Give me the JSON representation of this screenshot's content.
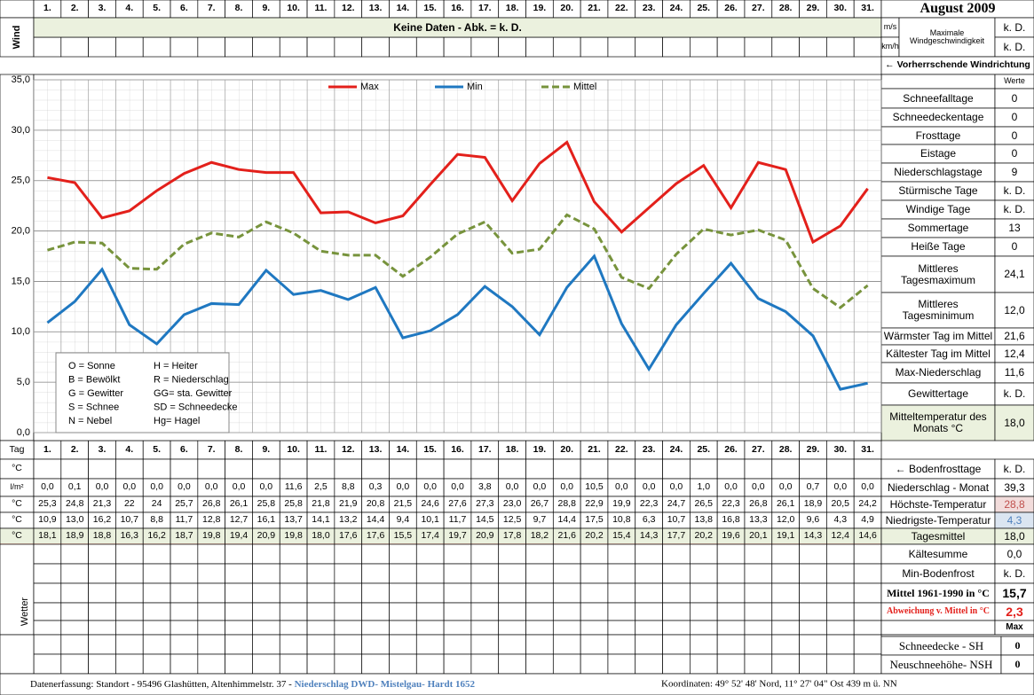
{
  "title": "August 2009",
  "wind": {
    "label": "Wind",
    "units": [
      "m/s",
      "km/h"
    ],
    "max_label": "Maximale Windgeschwindigkeit",
    "max_values": [
      "k. D.",
      "k. D."
    ],
    "no_data": "Keine Daten - Abk. = k. D.",
    "direction": "← Vorherrschende Windrichtung"
  },
  "chart_data": {
    "type": "line",
    "categories": [
      "1.",
      "2.",
      "3.",
      "4.",
      "5.",
      "6.",
      "7.",
      "8.",
      "9.",
      "10.",
      "11.",
      "12.",
      "13.",
      "14.",
      "15.",
      "16.",
      "17.",
      "18.",
      "19.",
      "20.",
      "21.",
      "22.",
      "23.",
      "24.",
      "25.",
      "26.",
      "27.",
      "28.",
      "29.",
      "30.",
      "31."
    ],
    "series": [
      {
        "name": "Max",
        "color": "#e3201b",
        "line_style": "solid",
        "values": [
          25.3,
          24.8,
          21.3,
          22,
          24,
          25.7,
          26.8,
          26.1,
          25.8,
          25.8,
          21.8,
          21.9,
          20.8,
          21.5,
          24.6,
          27.6,
          27.3,
          23.0,
          26.7,
          28.8,
          22.9,
          19.9,
          22.3,
          24.7,
          26.5,
          22.3,
          26.8,
          26.1,
          18.9,
          20.5,
          24.2
        ],
        "value_labels": [
          "25,3",
          "24,8",
          "21,3",
          "22",
          "24",
          "25,7",
          "26,8",
          "26,1",
          "25,8",
          "25,8",
          "21,8",
          "21,9",
          "20,8",
          "21,5",
          "24,6",
          "27,6",
          "27,3",
          "23,0",
          "26,7",
          "28,8",
          "22,9",
          "19,9",
          "22,3",
          "24,7",
          "26,5",
          "22,3",
          "26,8",
          "26,1",
          "18,9",
          "20,5",
          "24,2"
        ]
      },
      {
        "name": "Min",
        "color": "#1f78c1",
        "line_style": "solid",
        "values": [
          10.9,
          13.0,
          16.2,
          10.7,
          8.8,
          11.7,
          12.8,
          12.7,
          16.1,
          13.7,
          14.1,
          13.2,
          14.4,
          9.4,
          10.1,
          11.7,
          14.5,
          12.5,
          9.7,
          14.4,
          17.5,
          10.8,
          6.3,
          10.7,
          13.8,
          16.8,
          13.3,
          12.0,
          9.6,
          4.3,
          4.9
        ],
        "value_labels": [
          "10,9",
          "13,0",
          "16,2",
          "10,7",
          "8,8",
          "11,7",
          "12,8",
          "12,7",
          "16,1",
          "13,7",
          "14,1",
          "13,2",
          "14,4",
          "9,4",
          "10,1",
          "11,7",
          "14,5",
          "12,5",
          "9,7",
          "14,4",
          "17,5",
          "10,8",
          "6,3",
          "10,7",
          "13,8",
          "16,8",
          "13,3",
          "12,0",
          "9,6",
          "4,3",
          "4,9"
        ]
      },
      {
        "name": "Mittel",
        "color": "#77933c",
        "line_style": "dashed",
        "values": [
          18.1,
          18.9,
          18.8,
          16.3,
          16.2,
          18.7,
          19.8,
          19.4,
          20.9,
          19.8,
          18.0,
          17.6,
          17.6,
          15.5,
          17.4,
          19.7,
          20.9,
          17.8,
          18.2,
          21.6,
          20.2,
          15.4,
          14.3,
          17.7,
          20.2,
          19.6,
          20.1,
          19.1,
          14.3,
          12.4,
          14.6
        ],
        "value_labels": [
          "18,1",
          "18,9",
          "18,8",
          "16,3",
          "16,2",
          "18,7",
          "19,8",
          "19,4",
          "20,9",
          "19,8",
          "18,0",
          "17,6",
          "17,6",
          "15,5",
          "17,4",
          "19,7",
          "20,9",
          "17,8",
          "18,2",
          "21,6",
          "20,2",
          "15,4",
          "14,3",
          "17,7",
          "20,2",
          "19,6",
          "20,1",
          "19,1",
          "14,3",
          "12,4",
          "14,6"
        ]
      }
    ],
    "ylim": [
      0,
      35
    ],
    "yticks": [
      {
        "value": 0,
        "label": "0,0"
      },
      {
        "value": 5,
        "label": "5,0"
      },
      {
        "value": 10,
        "label": "10,0"
      },
      {
        "value": 15,
        "label": "15,0"
      },
      {
        "value": 20,
        "label": "20,0"
      },
      {
        "value": 25,
        "label": "25,0"
      },
      {
        "value": 30,
        "label": "30,0"
      },
      {
        "value": 35,
        "label": "35,0"
      }
    ],
    "grid": true,
    "legend": "top",
    "key": [
      "O = Sonne",
      "H = Heiter",
      "B = Bewölkt",
      "R = Niederschlag",
      "G = Gewitter",
      "GG= sta. Gewitter",
      "S = Schnee",
      "SD = Schneedecke",
      "N = Nebel",
      "Hg= Hagel"
    ]
  },
  "values_header": "Werte",
  "stats": [
    {
      "label": "Schneefalltage",
      "value": "0"
    },
    {
      "label": "Schneedeckentage",
      "value": "0"
    },
    {
      "label": "Frosttage",
      "value": "0"
    },
    {
      "label": "Eistage",
      "value": "0"
    },
    {
      "label": "Niederschlagstage",
      "value": "9"
    },
    {
      "label": "Stürmische Tage",
      "value": "k. D."
    },
    {
      "label": "Windige Tage",
      "value": "k. D."
    },
    {
      "label": "Sommertage",
      "value": "13"
    },
    {
      "label": "Heiße Tage",
      "value": "0"
    },
    {
      "label": "Mittleres Tagesmaximum",
      "value": "24,1"
    },
    {
      "label": "Mittleres Tagesminimum",
      "value": "12,0"
    },
    {
      "label": "Wärmster Tag im Mittel",
      "value": "21,6"
    },
    {
      "label": "Kältester Tag im Mittel",
      "value": "12,4"
    },
    {
      "label": "Max-Niederschlag",
      "value": "11,6"
    },
    {
      "label": "Gewittertage",
      "value": "k. D."
    },
    {
      "label": "Mitteltemperatur des Monats °C",
      "value": "18,0"
    }
  ],
  "table": {
    "day_label": "Tag",
    "units": [
      "°C",
      "l/m²",
      "°C",
      "°C",
      "°C"
    ],
    "weather_label": "Wetter",
    "precip": [
      "0,0",
      "0,1",
      "0,0",
      "0,0",
      "0,0",
      "0,0",
      "0,0",
      "0,0",
      "0,0",
      "11,6",
      "2,5",
      "8,8",
      "0,3",
      "0,0",
      "0,0",
      "0,0",
      "3,8",
      "0,0",
      "0,0",
      "0,0",
      "10,5",
      "0,0",
      "0,0",
      "0,0",
      "1,0",
      "0,0",
      "0,0",
      "0,0",
      "0,7",
      "0,0",
      "0,0"
    ]
  },
  "summary": [
    {
      "label": "← Bodenfrosttage",
      "value": "k. D."
    },
    {
      "label": "Niederschlag - Monat",
      "value": "39,3"
    },
    {
      "label": "Höchste-Temperatur",
      "value": "28,8"
    },
    {
      "label": "Niedrigste-Temperatur",
      "value": "4,3"
    },
    {
      "label": "Tagesmittel",
      "value": "18,0"
    },
    {
      "label": "Kältesumme",
      "value": "0,0"
    },
    {
      "label": "Min-Bodenfrost",
      "value": "k. D."
    },
    {
      "label": "Mittel 1961-1990 in °C",
      "value": "15,7"
    },
    {
      "label": "Abweichung v. Mittel in °C",
      "value": "2,3"
    },
    {
      "label": "",
      "value": "Max"
    }
  ],
  "snow": [
    {
      "label": "Schneedecke -   SH",
      "value": "0"
    },
    {
      "label": "Neuschneehöhe- NSH",
      "value": "0"
    }
  ],
  "footer": {
    "left": "Datenerfassung:  Standort -  95496  Glashütten, Altenhimmelstr. 37 - ",
    "link": "Niederschlag DWD- Mistelgau- Hardt 1652",
    "right": "Koordinaten:  49° 52' 48' Nord,   11° 27' 04\" Ost   439 m ü. NN"
  }
}
